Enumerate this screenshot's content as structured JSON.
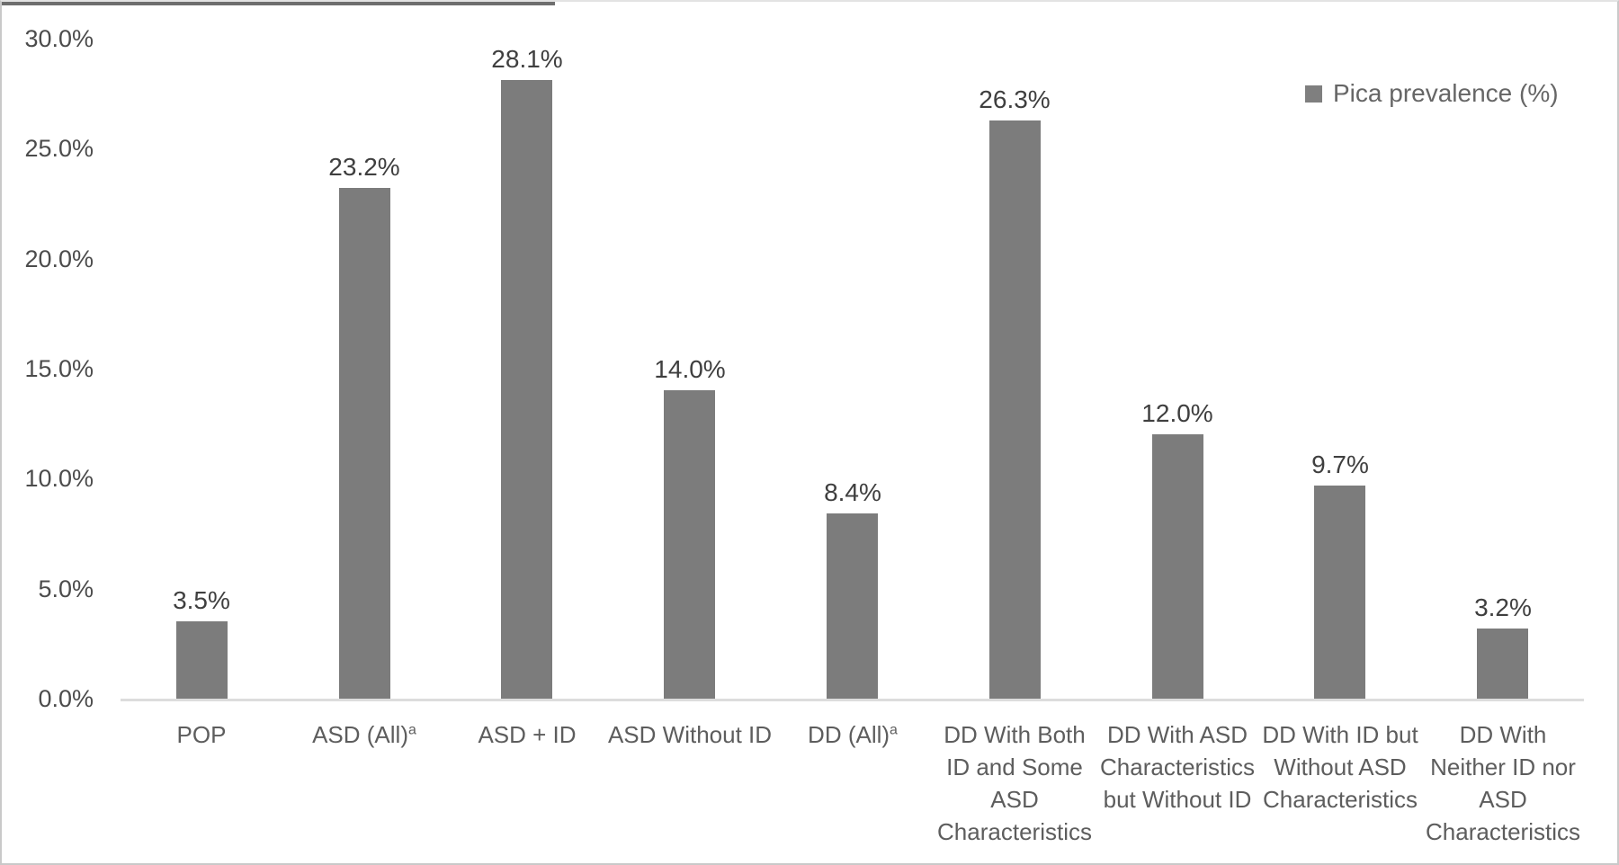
{
  "figure": {
    "legend_label": "Pica prevalence (%)"
  },
  "chart_data": {
    "type": "bar",
    "title": "",
    "xlabel": "",
    "ylabel": "",
    "legend": [
      "Pica prevalence (%)"
    ],
    "legend_position": "top-right",
    "grid": false,
    "ylim": [
      0,
      30
    ],
    "y_tick_values": [
      0,
      5,
      10,
      15,
      20,
      25,
      30
    ],
    "y_tick_labels": [
      "0.0%",
      "5.0%",
      "10.0%",
      "15.0%",
      "20.0%",
      "25.0%",
      "30.0%"
    ],
    "bar_color": "#7c7c7c",
    "categories": [
      {
        "label": "POP",
        "lines": [
          "POP"
        ]
      },
      {
        "label": "ASD (All)ᵃ",
        "lines": [
          "ASD (All)"
        ],
        "sup": "a"
      },
      {
        "label": "ASD + ID",
        "lines": [
          "ASD + ID"
        ]
      },
      {
        "label": "ASD Without ID",
        "lines": [
          "ASD Without ID"
        ]
      },
      {
        "label": "DD (All)ᵃ",
        "lines": [
          "DD (All)"
        ],
        "sup": "a"
      },
      {
        "label": "DD With Both ID and Some ASD Characteristics",
        "lines": [
          "DD With Both",
          "ID and Some",
          "ASD",
          "Characteristics"
        ]
      },
      {
        "label": "DD With ASD Characteristics but Without ID",
        "lines": [
          "DD With ASD",
          "Characteristics",
          "but Without ID"
        ]
      },
      {
        "label": "DD With ID but Without ASD Characteristics",
        "lines": [
          "DD With ID but",
          "Without ASD",
          "Characteristics"
        ]
      },
      {
        "label": "DD With Neither ID nor ASD Characteristics",
        "lines": [
          "DD With",
          "Neither ID nor",
          "ASD",
          "Characteristics"
        ]
      }
    ],
    "series": [
      {
        "name": "Pica prevalence (%)",
        "values": [
          3.5,
          23.2,
          28.1,
          14.0,
          8.4,
          26.3,
          12.0,
          9.7,
          3.2
        ]
      }
    ],
    "value_labels": [
      "3.5%",
      "23.2%",
      "28.1%",
      "14.0%",
      "8.4%",
      "26.3%",
      "12.0%",
      "9.7%",
      "3.2%"
    ]
  }
}
